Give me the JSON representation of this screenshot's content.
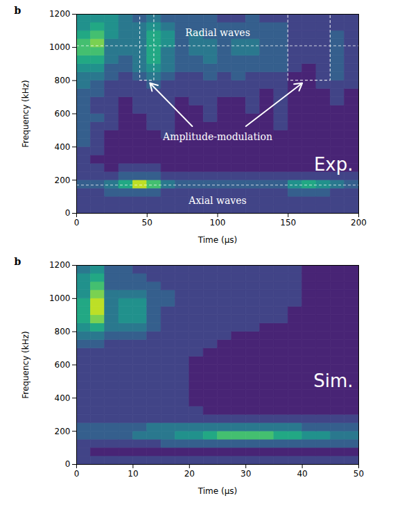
{
  "chart_data": [
    {
      "type": "heatmap",
      "panel_label": "b",
      "corner_label": "Exp.",
      "xlabel": "Time (μs)",
      "ylabel": "Frequency (kHz)",
      "xlim": [
        0,
        200
      ],
      "ylim": [
        0,
        1200
      ],
      "xticks": [
        0,
        50,
        100,
        150,
        200
      ],
      "yticks": [
        0,
        200,
        400,
        600,
        800,
        1000,
        1200
      ],
      "color": "viridis",
      "value_range": [
        0,
        10
      ],
      "xbins": [
        0,
        10,
        20,
        30,
        40,
        50,
        60,
        70,
        80,
        90,
        100,
        110,
        120,
        130,
        140,
        150,
        160,
        170,
        180,
        190,
        200
      ],
      "ybins": [
        0,
        50,
        100,
        150,
        200,
        250,
        300,
        350,
        400,
        450,
        500,
        550,
        600,
        650,
        700,
        750,
        800,
        850,
        900,
        950,
        1000,
        1050,
        1100,
        1150,
        1200
      ],
      "values": [
        [
          2,
          2,
          2,
          2,
          2,
          2,
          2,
          2,
          2,
          2,
          2,
          2,
          2,
          2,
          2,
          2,
          2,
          2,
          2,
          2
        ],
        [
          2,
          2,
          2,
          2,
          2,
          2,
          2,
          2,
          2,
          2,
          2,
          2,
          2,
          2,
          2,
          2,
          2,
          2,
          2,
          2
        ],
        [
          2,
          2,
          3,
          3,
          3,
          3,
          2,
          2,
          2,
          2,
          2,
          2,
          2,
          2,
          2,
          3,
          3,
          3,
          2,
          2
        ],
        [
          3,
          3,
          4,
          6,
          9,
          7,
          4,
          3,
          3,
          3,
          3,
          3,
          3,
          3,
          3,
          5,
          6,
          5,
          4,
          3
        ],
        [
          2,
          2,
          2,
          3,
          3,
          3,
          2,
          2,
          2,
          2,
          2,
          2,
          2,
          2,
          2,
          2,
          2,
          2,
          2,
          2
        ],
        [
          2,
          2,
          1,
          2,
          2,
          2,
          1,
          1,
          1,
          1,
          1,
          1,
          1,
          1,
          1,
          1,
          1,
          1,
          1,
          1
        ],
        [
          2,
          1,
          1,
          1,
          1,
          1,
          1,
          1,
          1,
          1,
          1,
          1,
          1,
          1,
          1,
          1,
          1,
          1,
          1,
          1
        ],
        [
          2,
          2,
          1,
          1,
          1,
          1,
          1,
          1,
          1,
          1,
          1,
          1,
          1,
          1,
          1,
          1,
          1,
          1,
          1,
          1
        ],
        [
          3,
          2,
          1,
          1,
          1,
          1,
          1,
          1,
          1,
          1,
          1,
          1,
          1,
          1,
          1,
          1,
          1,
          1,
          1,
          1
        ],
        [
          3,
          2,
          1,
          1,
          1,
          1,
          2,
          1,
          1,
          1,
          1,
          1,
          1,
          1,
          1,
          1,
          1,
          1,
          1,
          1
        ],
        [
          3,
          2,
          2,
          1,
          1,
          2,
          2,
          1,
          1,
          1,
          1,
          1,
          1,
          1,
          2,
          1,
          1,
          1,
          1,
          1
        ],
        [
          3,
          3,
          2,
          1,
          1,
          2,
          2,
          1,
          1,
          2,
          1,
          1,
          1,
          1,
          2,
          1,
          1,
          1,
          1,
          1
        ],
        [
          3,
          2,
          2,
          1,
          2,
          2,
          2,
          1,
          1,
          2,
          1,
          1,
          2,
          1,
          2,
          1,
          1,
          1,
          1,
          1
        ],
        [
          3,
          2,
          2,
          1,
          2,
          2,
          2,
          1,
          2,
          2,
          1,
          1,
          2,
          1,
          2,
          1,
          1,
          1,
          2,
          1
        ],
        [
          3,
          3,
          2,
          2,
          2,
          2,
          2,
          2,
          2,
          2,
          2,
          2,
          2,
          1,
          2,
          1,
          1,
          1,
          2,
          1
        ],
        [
          4,
          3,
          2,
          2,
          2,
          3,
          2,
          2,
          2,
          2,
          2,
          2,
          2,
          2,
          2,
          1,
          1,
          2,
          2,
          2
        ],
        [
          4,
          4,
          3,
          2,
          3,
          4,
          3,
          2,
          2,
          3,
          2,
          3,
          2,
          2,
          2,
          1,
          1,
          2,
          3,
          2
        ],
        [
          5,
          5,
          3,
          3,
          4,
          5,
          4,
          3,
          3,
          3,
          3,
          3,
          3,
          3,
          3,
          2,
          1,
          2,
          3,
          2
        ],
        [
          6,
          6,
          4,
          3,
          4,
          6,
          4,
          3,
          3,
          4,
          3,
          3,
          3,
          3,
          3,
          2,
          2,
          2,
          3,
          2
        ],
        [
          7,
          7,
          4,
          4,
          4,
          6,
          4,
          3,
          4,
          4,
          3,
          4,
          4,
          3,
          3,
          2,
          2,
          2,
          3,
          2
        ],
        [
          7,
          8,
          4,
          4,
          4,
          6,
          5,
          3,
          4,
          4,
          3,
          4,
          4,
          3,
          3,
          2,
          2,
          2,
          3,
          2
        ],
        [
          6,
          7,
          5,
          4,
          4,
          6,
          5,
          3,
          4,
          3,
          3,
          3,
          3,
          3,
          3,
          2,
          2,
          2,
          3,
          2
        ],
        [
          5,
          6,
          5,
          4,
          4,
          5,
          4,
          3,
          3,
          3,
          3,
          3,
          3,
          3,
          3,
          2,
          2,
          2,
          2,
          2
        ],
        [
          5,
          5,
          5,
          4,
          3,
          4,
          3,
          3,
          3,
          3,
          2,
          2,
          3,
          2,
          2,
          2,
          2,
          2,
          2,
          2
        ]
      ],
      "hlines": [
        1010,
        170
      ],
      "boxes": [
        {
          "x": [
            45,
            55
          ],
          "y": [
            800,
            1200
          ]
        },
        {
          "x": [
            150,
            180
          ],
          "y": [
            800,
            1200
          ]
        }
      ],
      "annotations": [
        {
          "text": "Radial waves",
          "x": 100,
          "y": 1085
        },
        {
          "text": "Amplitude-modulation",
          "x": 100,
          "y": 460
        },
        {
          "text": "Axial waves",
          "x": 100,
          "y": 75
        }
      ],
      "arrows": [
        {
          "from": [
            82,
            525
          ],
          "to": [
            52,
            785
          ]
        },
        {
          "from": [
            120,
            525
          ],
          "to": [
            160,
            785
          ]
        }
      ]
    },
    {
      "type": "heatmap",
      "panel_label": "b",
      "corner_label": "Sim.",
      "xlabel": "Time (μs)",
      "ylabel": "Frequency (kHz)",
      "xlim": [
        0,
        50
      ],
      "ylim": [
        0,
        1200
      ],
      "xticks": [
        0,
        10,
        20,
        30,
        40,
        50
      ],
      "yticks": [
        0,
        200,
        400,
        600,
        800,
        1000,
        1200
      ],
      "color": "viridis",
      "value_range": [
        0,
        10
      ],
      "xbins": [
        0,
        2.5,
        5,
        7.5,
        10,
        12.5,
        15,
        17.5,
        20,
        22.5,
        25,
        27.5,
        30,
        32.5,
        35,
        37.5,
        40,
        42.5,
        45,
        47.5,
        50
      ],
      "ybins": [
        0,
        50,
        100,
        150,
        200,
        250,
        300,
        350,
        400,
        450,
        500,
        550,
        600,
        650,
        700,
        750,
        800,
        850,
        900,
        950,
        1000,
        1050,
        1100,
        1150,
        1200
      ],
      "values": [
        [
          2,
          2,
          2,
          2,
          2,
          2,
          2,
          2,
          2,
          2,
          2,
          2,
          2,
          2,
          2,
          2,
          2,
          2,
          2,
          2
        ],
        [
          2,
          1,
          1,
          1,
          1,
          1,
          1,
          1,
          1,
          1,
          1,
          1,
          1,
          1,
          1,
          1,
          1,
          1,
          1,
          1
        ],
        [
          2,
          2,
          2,
          2,
          2,
          2,
          3,
          3,
          3,
          3,
          3,
          3,
          3,
          3,
          3,
          3,
          3,
          3,
          3,
          3
        ],
        [
          3,
          3,
          3,
          3,
          4,
          4,
          4,
          5,
          5,
          6,
          7,
          7,
          7,
          7,
          6,
          6,
          5,
          5,
          4,
          4
        ],
        [
          3,
          3,
          3,
          3,
          3,
          4,
          4,
          4,
          4,
          4,
          4,
          4,
          4,
          4,
          4,
          4,
          3,
          3,
          3,
          3
        ],
        [
          2,
          2,
          2,
          2,
          2,
          2,
          2,
          2,
          2,
          2,
          2,
          2,
          2,
          2,
          2,
          2,
          2,
          2,
          2,
          2
        ],
        [
          2,
          2,
          2,
          2,
          2,
          2,
          2,
          2,
          2,
          1,
          1,
          1,
          1,
          1,
          1,
          1,
          1,
          1,
          1,
          1
        ],
        [
          2,
          2,
          2,
          2,
          2,
          2,
          2,
          2,
          1,
          1,
          1,
          1,
          1,
          1,
          1,
          1,
          1,
          1,
          1,
          1
        ],
        [
          2,
          2,
          2,
          2,
          2,
          2,
          2,
          2,
          1,
          1,
          1,
          1,
          1,
          1,
          1,
          1,
          1,
          1,
          1,
          1
        ],
        [
          2,
          2,
          2,
          2,
          2,
          2,
          2,
          2,
          1,
          1,
          1,
          1,
          1,
          1,
          1,
          1,
          1,
          1,
          1,
          1
        ],
        [
          2,
          2,
          2,
          2,
          2,
          2,
          2,
          2,
          1,
          1,
          1,
          1,
          1,
          1,
          1,
          1,
          1,
          1,
          1,
          1
        ],
        [
          2,
          2,
          2,
          2,
          2,
          2,
          2,
          2,
          1,
          1,
          1,
          1,
          1,
          1,
          1,
          1,
          1,
          1,
          1,
          1
        ],
        [
          2,
          2,
          2,
          2,
          2,
          2,
          2,
          2,
          1,
          1,
          1,
          1,
          1,
          1,
          1,
          1,
          1,
          1,
          1,
          1
        ],
        [
          2,
          2,
          2,
          2,
          2,
          2,
          2,
          2,
          2,
          1,
          1,
          1,
          1,
          1,
          1,
          1,
          1,
          1,
          1,
          1
        ],
        [
          3,
          3,
          2,
          2,
          2,
          2,
          2,
          2,
          2,
          2,
          1,
          1,
          1,
          1,
          1,
          1,
          1,
          1,
          1,
          1
        ],
        [
          4,
          4,
          3,
          3,
          3,
          2,
          2,
          2,
          2,
          2,
          2,
          1,
          1,
          1,
          1,
          1,
          1,
          1,
          1,
          1
        ],
        [
          5,
          6,
          4,
          4,
          4,
          3,
          2,
          2,
          2,
          2,
          2,
          2,
          2,
          1,
          1,
          1,
          1,
          1,
          1,
          1
        ],
        [
          6,
          8,
          4,
          5,
          5,
          3,
          2,
          2,
          2,
          2,
          2,
          2,
          2,
          2,
          2,
          1,
          1,
          1,
          1,
          1
        ],
        [
          6,
          9,
          4,
          5,
          5,
          3,
          2,
          2,
          2,
          2,
          2,
          2,
          2,
          2,
          2,
          1,
          1,
          1,
          1,
          1
        ],
        [
          6,
          9,
          4,
          5,
          5,
          3,
          3,
          2,
          2,
          2,
          2,
          2,
          2,
          2,
          2,
          2,
          1,
          1,
          1,
          1
        ],
        [
          5,
          8,
          4,
          4,
          4,
          3,
          3,
          2,
          2,
          2,
          2,
          2,
          2,
          2,
          2,
          2,
          1,
          1,
          1,
          1
        ],
        [
          5,
          7,
          3,
          3,
          3,
          3,
          2,
          2,
          2,
          2,
          2,
          2,
          2,
          2,
          2,
          2,
          1,
          1,
          1,
          1
        ],
        [
          5,
          6,
          3,
          3,
          3,
          2,
          2,
          2,
          2,
          2,
          2,
          2,
          2,
          2,
          2,
          2,
          1,
          1,
          1,
          1
        ],
        [
          4,
          5,
          3,
          3,
          2,
          2,
          2,
          2,
          2,
          2,
          2,
          2,
          2,
          2,
          2,
          2,
          1,
          1,
          1,
          1
        ]
      ]
    }
  ]
}
